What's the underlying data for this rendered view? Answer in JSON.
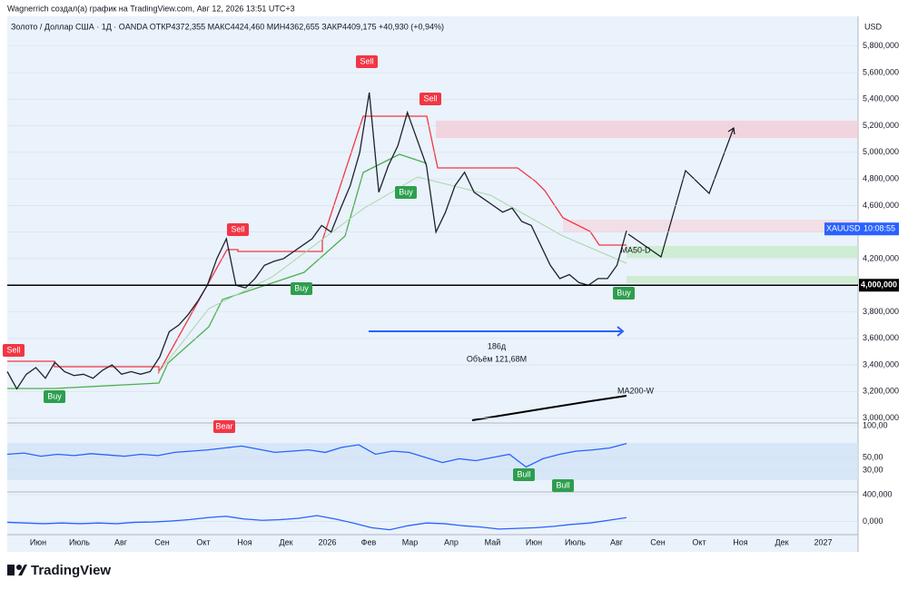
{
  "header": {
    "credit": "Wagnerrich создал(а) график на TradingView.com, Авг 12, 2026 13:51 UTC+3",
    "symbol_line": "Золото / Доллар США · 1Д · OANDA  ОТКР4372,355  МАКС4424,460  МИН4362,655  ЗАКР4409,175  +40,930 (+0,94%)"
  },
  "footer": {
    "brand": "TradingView"
  },
  "time_axis": {
    "labels": [
      "Июн",
      "Июль",
      "Авг",
      "Сен",
      "Окт",
      "Ноя",
      "Дек",
      "2026",
      "Фев",
      "Мар",
      "Апр",
      "Май",
      "Июн",
      "Июль",
      "Авг",
      "Сен",
      "Окт",
      "Ноя",
      "Дек",
      "2027"
    ]
  },
  "chart_data": [
    {
      "type": "line",
      "unit": "USD",
      "ylim": [
        2970000,
        6010000
      ],
      "yticks": [
        {
          "value": 3000000,
          "label": "3,000,000"
        },
        {
          "value": 3200000,
          "label": "3,200,000"
        },
        {
          "value": 3400000,
          "label": "3,400,000"
        },
        {
          "value": 3600000,
          "label": "3,600,000"
        },
        {
          "value": 3800000,
          "label": "3,800,000"
        },
        {
          "value": 4200000,
          "label": "4,200,000"
        },
        {
          "value": 4400000,
          "label": "4,400,000"
        },
        {
          "value": 4600000,
          "label": "4,600,000"
        },
        {
          "value": 4800000,
          "label": "4,800,000"
        },
        {
          "value": 5000000,
          "label": "5,000,000"
        },
        {
          "value": 5200000,
          "label": "5,200,000"
        },
        {
          "value": 5400000,
          "label": "5,400,000"
        },
        {
          "value": 5600000,
          "label": "5,600,000"
        },
        {
          "value": 5800000,
          "label": "5,800,000"
        }
      ],
      "hline": {
        "value": 4000000,
        "label": "4,000,000"
      },
      "price_tag": {
        "symbol": "XAUUSD",
        "countdown": "10:08:55"
      },
      "series": [
        {
          "name": "XAUUSD",
          "color": "#1e222d",
          "values": [
            3350000,
            3220000,
            3330000,
            3380000,
            3300000,
            3420000,
            3350000,
            3320000,
            3330000,
            3300000,
            3360000,
            3400000,
            3330000,
            3350000,
            3330000,
            3350000,
            3460000,
            3650000,
            3700000,
            3780000,
            3880000,
            4000000,
            4200000,
            4350000,
            4000000,
            3980000,
            4050000,
            4150000,
            4180000,
            4200000,
            4250000,
            4300000,
            4350000,
            4450000,
            4400000,
            4580000,
            4750000,
            5000000,
            5450000,
            4700000,
            4900000,
            5050000,
            5300000,
            5100000,
            4900000,
            4400000,
            4550000,
            4750000,
            4850000,
            4700000,
            4650000,
            4600000,
            4550000,
            4580000,
            4480000,
            4450000,
            4300000,
            4150000,
            4050000,
            4080000,
            4020000,
            4000000,
            4050000,
            4050000,
            4150000,
            4410000
          ]
        }
      ],
      "annotations": [
        "Sell",
        "Sell",
        "Sell",
        "Sell",
        "Buy",
        "Buy",
        "Buy",
        "Buy",
        "186д",
        "Объём 121,68М",
        "MA200-W",
        "MA50-D"
      ]
    },
    {
      "type": "line",
      "ylim": [
        0,
        100
      ],
      "yticks": [
        {
          "value": 100,
          "label": "100,00"
        },
        {
          "value": 50,
          "label": "50,00"
        },
        {
          "value": 30,
          "label": "30,00"
        }
      ],
      "series": [
        {
          "name": "RSI",
          "color": "#2962ff",
          "values": [
            55,
            57,
            52,
            55,
            53,
            56,
            54,
            52,
            55,
            53,
            58,
            60,
            62,
            65,
            68,
            63,
            58,
            60,
            62,
            58,
            66,
            70,
            55,
            60,
            58,
            50,
            42,
            48,
            45,
            50,
            55,
            35,
            48,
            55,
            60,
            62,
            65,
            72
          ]
        }
      ],
      "annotations": [
        "Bear",
        "Bull",
        "Bull"
      ]
    },
    {
      "type": "line",
      "ylim": [
        -300000,
        400000
      ],
      "yticks": [
        {
          "value": 400000,
          "label": "400,000"
        },
        {
          "value": 0,
          "label": "0,000"
        }
      ],
      "series": [
        {
          "name": "MACD",
          "color": "#2962ff",
          "values": [
            -10000,
            -20000,
            -30000,
            -20000,
            -30000,
            -20000,
            -30000,
            -10000,
            -5000,
            10000,
            30000,
            60000,
            80000,
            40000,
            20000,
            30000,
            50000,
            90000,
            40000,
            -20000,
            -90000,
            -120000,
            -60000,
            -20000,
            -30000,
            -60000,
            -80000,
            -110000,
            -100000,
            -90000,
            -70000,
            -40000,
            -20000,
            20000,
            60000
          ]
        }
      ]
    }
  ]
}
